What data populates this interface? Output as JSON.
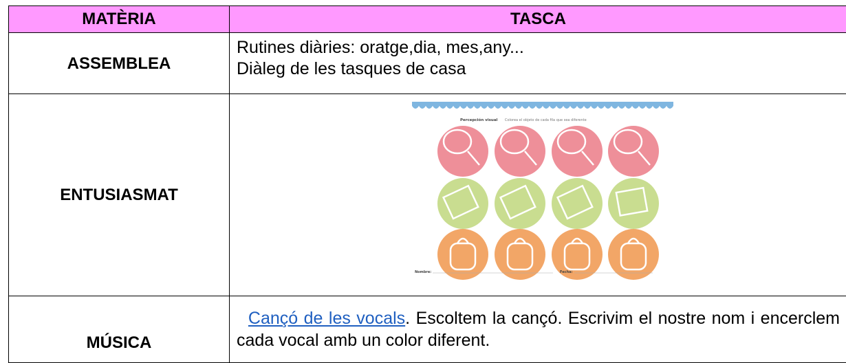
{
  "table": {
    "header": [
      "MATÈRIA",
      "TASCA"
    ],
    "rows": [
      {
        "subject": "ASSEMBLEA",
        "task": [
          "Rutines diàries: oratge,dia, mes,any...",
          "Diàleg de les tasques de casa"
        ]
      },
      {
        "subject": "ENTUSIASMAT",
        "worksheet": {
          "title": "Percepción visual",
          "instruction": "Colorea el objeto de cada fila que sea diferente",
          "name_label": "Nombre:",
          "date_label": "Fecha:"
        }
      },
      {
        "subject": "MÚSICA",
        "link": "Cançó de les vocals",
        "task": ". Escoltem la cançó. Escrivim el nostre nom i encerclem cada vocal amb un color diferent."
      }
    ]
  }
}
